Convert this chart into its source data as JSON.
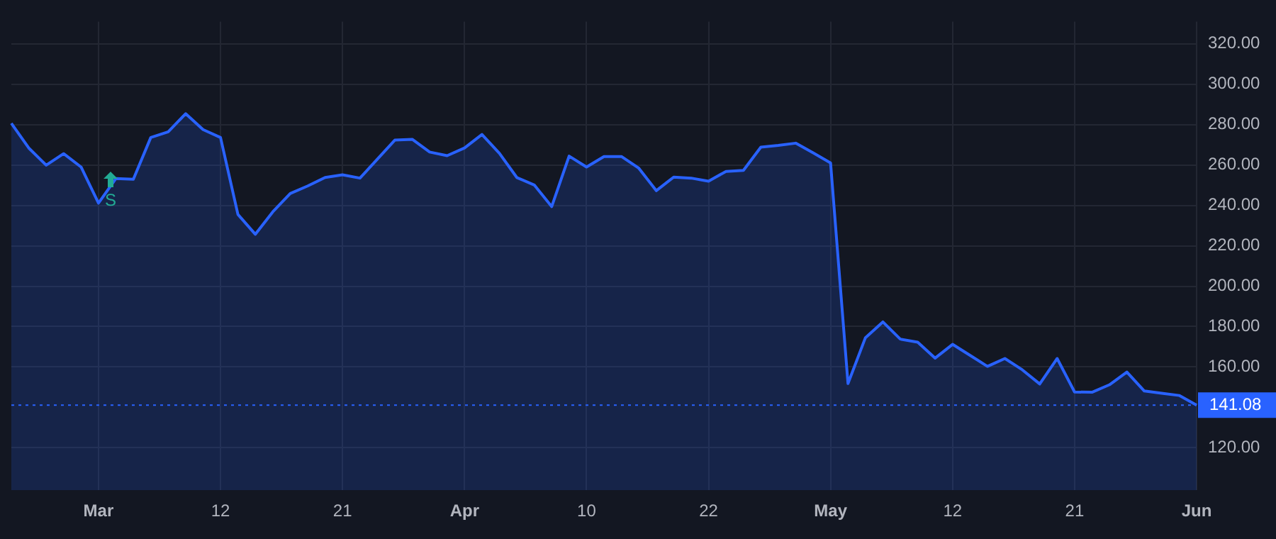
{
  "chart_data": {
    "type": "area",
    "categories": [
      null,
      null,
      null,
      null,
      null,
      "Mar",
      null,
      null,
      null,
      null,
      null,
      null,
      "12",
      null,
      null,
      null,
      null,
      null,
      null,
      "21",
      null,
      null,
      null,
      null,
      null,
      null,
      "Apr",
      null,
      null,
      null,
      null,
      null,
      null,
      "10",
      null,
      null,
      null,
      null,
      null,
      null,
      "22",
      null,
      null,
      null,
      null,
      null,
      null,
      "May",
      null,
      null,
      null,
      null,
      null,
      null,
      "12",
      null,
      null,
      null,
      null,
      null,
      null,
      "21",
      null,
      null,
      null,
      null,
      null,
      null,
      "Jun"
    ],
    "series": [
      {
        "color": "#2962ff",
        "values": [
          280.6,
          268.4,
          259.9,
          265.6,
          259.0,
          241.1,
          253.3,
          252.9,
          273.6,
          276.4,
          285.4,
          277.5,
          273.6,
          235.5,
          225.7,
          236.8,
          245.9,
          249.6,
          253.8,
          255.1,
          253.5,
          262.9,
          272.3,
          272.7,
          266.4,
          264.6,
          268.4,
          275.1,
          265.8,
          253.8,
          250.1,
          239.4,
          264.4,
          259.0,
          264.2,
          264.2,
          258.4,
          247.3,
          254.0,
          253.5,
          252.0,
          256.8,
          257.3,
          268.8,
          269.7,
          270.8,
          266.0,
          261.0,
          151.8,
          174.5,
          182.3,
          173.8,
          172.3,
          164.4,
          171.2,
          165.8,
          160.3,
          164.2,
          158.6,
          151.6,
          164.2,
          147.6,
          147.5,
          151.2,
          157.5,
          148.1,
          147.0,
          145.9,
          141.08
        ]
      }
    ],
    "ylim": [
      99,
      331
    ],
    "yticks": [
      {
        "value": 120,
        "label": "120.00"
      },
      {
        "value": 160,
        "label": "160.00"
      },
      {
        "value": 180,
        "label": "180.00"
      },
      {
        "value": 200,
        "label": "200.00"
      },
      {
        "value": 220,
        "label": "220.00"
      },
      {
        "value": 240,
        "label": "240.00"
      },
      {
        "value": 260,
        "label": "260.00"
      },
      {
        "value": 280,
        "label": "280.00"
      },
      {
        "value": 300,
        "label": "300.00"
      },
      {
        "value": 320,
        "label": "320.00"
      }
    ],
    "ref_lines": [
      {
        "axis": "y",
        "value": 141.08,
        "label": "141.08",
        "color": "#2962ff",
        "line_style": "dotted"
      }
    ],
    "annotations": [
      "S"
    ],
    "grid": true,
    "legend": false
  }
}
